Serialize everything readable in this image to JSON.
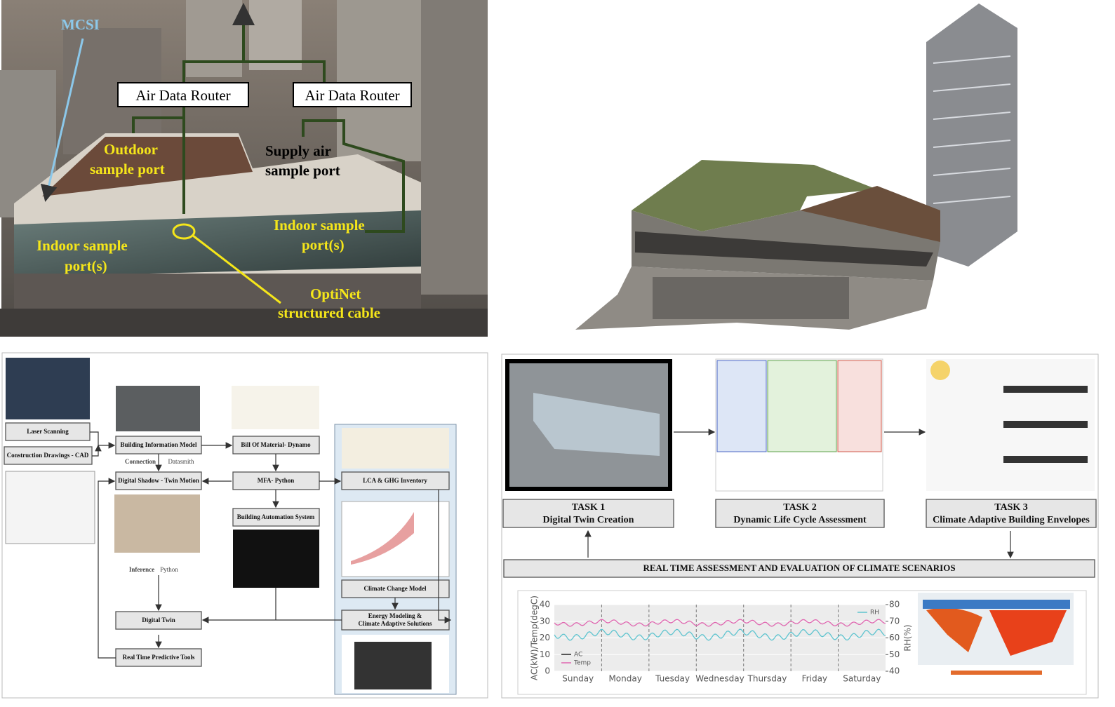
{
  "photo": {
    "mcsi": "MCSI",
    "routers": [
      "Air Data Router",
      "Air Data Router"
    ],
    "outdoor": [
      "Outdoor",
      "sample port"
    ],
    "supply": [
      "Supply air",
      "sample port"
    ],
    "indoor_left": [
      "Indoor sample",
      "port(s)"
    ],
    "indoor_right": [
      "Indoor sample",
      "port(s)"
    ],
    "cable": [
      "OptiNet",
      "structured cable"
    ]
  },
  "workflow": {
    "laser": "Laser Scanning",
    "cad": "Construction Drawings - CAD",
    "bim": "Building Information Model",
    "connection": "Connection",
    "datasmith": "Datasmith",
    "shadow": "Digital Shadow - Twin Motion",
    "inference": "Inference",
    "python": "Python",
    "twin": "Digital Twin",
    "predictive": "Real Time Predictive Tools",
    "bom": "Bill Of Material- Dynamo",
    "mfa": "MFA- Python",
    "bas": "Building Automation System",
    "lca": "LCA & GHG Inventory",
    "climate_model": "Climate Change Model",
    "energy": [
      "Energy Modeling &",
      "Climate Adaptive Solutions"
    ]
  },
  "tasks": [
    {
      "label": "TASK 1",
      "name": "Digital Twin Creation"
    },
    {
      "label": "TASK 2",
      "name": "Dynamic Life Cycle Assessment"
    },
    {
      "label": "TASK 3",
      "name": "Climate Adaptive Building Envelopes"
    }
  ],
  "banner": "REAL TIME ASSESSMENT AND EVALUATION OF CLIMATE SCENARIOS",
  "chart": {
    "ylabel": "AC(kW)/Temp(degC)",
    "y2label": "RH(%)",
    "ylim": [
      0,
      40
    ],
    "yticks": [
      0,
      10,
      20,
      30,
      40
    ],
    "y2lim": [
      40,
      80
    ],
    "y2ticks": [
      40,
      50,
      60,
      70,
      80
    ],
    "days": [
      "Sunday",
      "Monday",
      "Tuesday",
      "Wednesday",
      "Thursday",
      "Friday",
      "Saturday"
    ],
    "legend": [
      "AC",
      "Temp",
      "RH"
    ]
  }
}
